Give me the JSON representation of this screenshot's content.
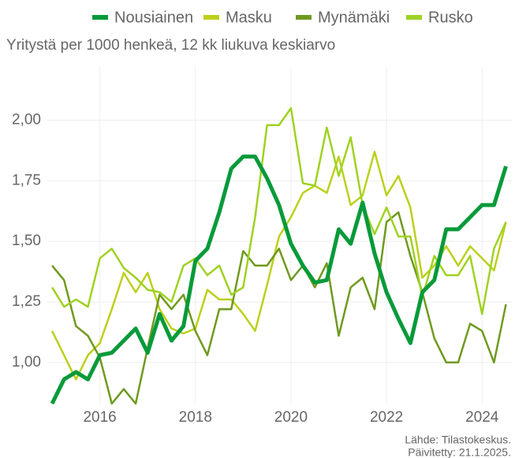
{
  "chart_data": {
    "type": "line",
    "subtitle": "Yritystä per 1000 henkeä, 12 kk liukuva keskiarvo",
    "source": [
      "Lähde: Tilastokeskus.",
      "Päivitetty: 21.1.2025."
    ],
    "x": [
      2015,
      2015.25,
      2015.5,
      2015.75,
      2016,
      2016.25,
      2016.5,
      2016.75,
      2017,
      2017.25,
      2017.5,
      2017.75,
      2018,
      2018.25,
      2018.5,
      2018.75,
      2019,
      2019.25,
      2019.5,
      2019.75,
      2020,
      2020.25,
      2020.5,
      2020.75,
      2021,
      2021.25,
      2021.5,
      2021.75,
      2022,
      2022.25,
      2022.5,
      2022.75,
      2023,
      2023.25,
      2023.5,
      2023.75,
      2024,
      2024.25,
      2024.5
    ],
    "series": [
      {
        "name": "Nousiainen",
        "color": "#079a3a",
        "width": 5,
        "values": [
          0.83,
          0.93,
          0.96,
          0.93,
          1.03,
          1.04,
          1.09,
          1.14,
          1.04,
          1.2,
          1.09,
          1.15,
          1.42,
          1.47,
          1.62,
          1.8,
          1.85,
          1.85,
          1.76,
          1.65,
          1.49,
          1.4,
          1.33,
          1.34,
          1.55,
          1.49,
          1.66,
          1.45,
          1.29,
          1.18,
          1.08,
          1.29,
          1.34,
          1.55,
          1.55,
          1.6,
          1.65,
          1.65,
          1.81
        ]
      },
      {
        "name": "Masku",
        "color": "#bcd01c",
        "width": 2.5,
        "values": [
          1.13,
          1.03,
          0.93,
          1.03,
          1.08,
          1.22,
          1.37,
          1.29,
          1.37,
          1.22,
          1.14,
          1.12,
          1.14,
          1.3,
          1.26,
          1.26,
          1.2,
          1.13,
          1.32,
          1.52,
          1.6,
          1.7,
          1.73,
          1.7,
          1.85,
          1.65,
          1.69,
          1.87,
          1.69,
          1.77,
          1.64,
          1.35,
          1.4,
          1.48,
          1.4,
          1.48,
          1.43,
          1.38,
          1.58
        ]
      },
      {
        "name": "Mynämäki",
        "color": "#6f9a1f",
        "width": 2.5,
        "values": [
          1.4,
          1.34,
          1.15,
          1.11,
          1.02,
          0.83,
          0.89,
          0.83,
          1.06,
          1.28,
          1.22,
          1.28,
          1.13,
          1.03,
          1.22,
          1.22,
          1.46,
          1.4,
          1.4,
          1.47,
          1.34,
          1.4,
          1.31,
          1.41,
          1.11,
          1.31,
          1.35,
          1.22,
          1.58,
          1.62,
          1.44,
          1.29,
          1.1,
          1.0,
          1.0,
          1.16,
          1.13,
          1.0,
          1.24
        ]
      },
      {
        "name": "Rusko",
        "color": "#9fd222",
        "width": 2.5,
        "values": [
          1.31,
          1.23,
          1.26,
          1.23,
          1.43,
          1.47,
          1.39,
          1.35,
          1.3,
          1.29,
          1.25,
          1.4,
          1.43,
          1.36,
          1.4,
          1.28,
          1.31,
          1.6,
          1.98,
          1.98,
          2.05,
          1.74,
          1.73,
          1.97,
          1.77,
          1.93,
          1.65,
          1.53,
          1.64,
          1.52,
          1.52,
          1.27,
          1.44,
          1.36,
          1.36,
          1.44,
          1.2,
          1.47,
          1.58
        ]
      }
    ],
    "xlim": [
      2014.9,
      2024.64
    ],
    "xticks": [
      2016,
      2018,
      2020,
      2022,
      2024
    ],
    "ylim": [
      0.83,
      2.22
    ],
    "yticks": [
      {
        "value": 1,
        "label": "1,00"
      },
      {
        "value": 1.25,
        "label": "1,25"
      },
      {
        "value": 1.5,
        "label": "1,50"
      },
      {
        "value": 1.75,
        "label": "1,75"
      },
      {
        "value": 2,
        "label": "2,00"
      }
    ],
    "grid": true,
    "legend": "top"
  }
}
